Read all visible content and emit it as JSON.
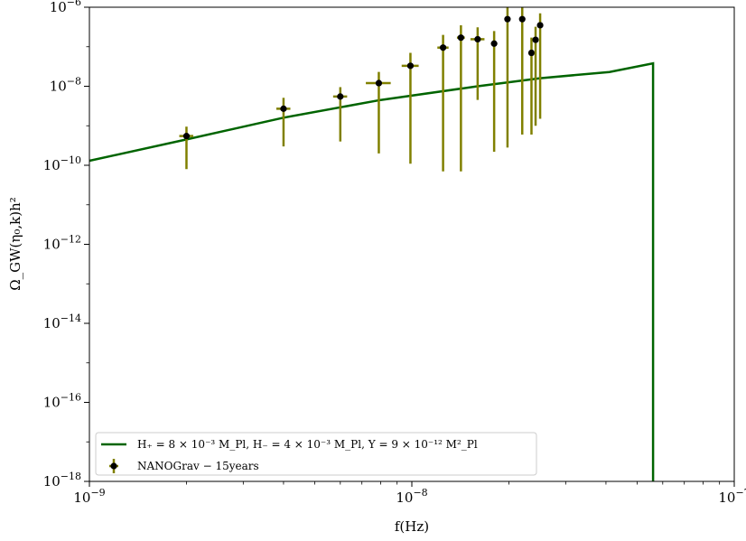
{
  "chart_data": {
    "type": "scatter",
    "title": "",
    "xlabel": "f(Hz)",
    "ylabel": "Ω_GW(η₀,k)h²",
    "x_scale": "log",
    "y_scale": "log",
    "xlim": [
      1e-09,
      1e-07
    ],
    "ylim": [
      1e-18,
      1e-06
    ],
    "grid": false,
    "legend_position": "lower-left",
    "x_ticks": [
      {
        "value": 1e-09,
        "base": "10",
        "exp": "−9"
      },
      {
        "value": 1e-08,
        "base": "10",
        "exp": "−8"
      },
      {
        "value": 1e-07,
        "base": "10",
        "exp": "−7"
      }
    ],
    "y_ticks": [
      {
        "value": 1e-06,
        "base": "10",
        "exp": "−6"
      },
      {
        "value": 1e-08,
        "base": "10",
        "exp": "−8"
      },
      {
        "value": 1e-10,
        "base": "10",
        "exp": "−10"
      },
      {
        "value": 1e-12,
        "base": "10",
        "exp": "−12"
      },
      {
        "value": 1e-14,
        "base": "10",
        "exp": "−14"
      },
      {
        "value": 1e-16,
        "base": "10",
        "exp": "−16"
      },
      {
        "value": 1e-18,
        "base": "10",
        "exp": "−18"
      }
    ],
    "series": [
      {
        "name": "H₊ = 8 × 10⁻³ M_Pl,   H₋ = 4 × 10⁻³ M_Pl,   Y = 9 × 10⁻¹² M²_Pl",
        "kind": "line",
        "color": "#006400",
        "x": [
          1e-09,
          2e-09,
          4e-09,
          8e-09,
          1.6e-08,
          2.5e-08,
          4.1e-08,
          5.6e-08,
          5.6e-08
        ],
        "y": [
          1.3e-10,
          4.5e-10,
          1.6e-09,
          4.5e-09,
          1e-08,
          1.6e-08,
          2.3e-08,
          3.8e-08,
          1e-18
        ]
      },
      {
        "name": "NANOGrav − 15years",
        "kind": "errorbar",
        "marker_color": "#000000",
        "errorbar_color": "#808000",
        "points": [
          {
            "x": 2e-09,
            "y": 5.5e-10,
            "ylo": 8e-11,
            "yhi": 9.5e-10,
            "xlo": 1.9e-09,
            "xhi": 2.1e-09
          },
          {
            "x": 4e-09,
            "y": 2.7e-09,
            "ylo": 3e-10,
            "yhi": 5.1e-09,
            "xlo": 3.8e-09,
            "xhi": 4.2e-09
          },
          {
            "x": 6e-09,
            "y": 5.5e-09,
            "ylo": 4e-10,
            "yhi": 9.5e-09,
            "xlo": 5.7e-09,
            "xhi": 6.3e-09
          },
          {
            "x": 7.9e-09,
            "y": 1.2e-08,
            "ylo": 2e-10,
            "yhi": 2.3e-08,
            "xlo": 7.2e-09,
            "xhi": 8.6e-09
          },
          {
            "x": 9.9e-09,
            "y": 3.3e-08,
            "ylo": 1.1e-10,
            "yhi": 7e-08,
            "xlo": 9.3e-09,
            "xhi": 1.05e-08
          },
          {
            "x": 1.25e-08,
            "y": 9.5e-08,
            "ylo": 7e-11,
            "yhi": 2e-07,
            "xlo": 1.2e-08,
            "xhi": 1.3e-08
          },
          {
            "x": 1.42e-08,
            "y": 1.7e-07,
            "ylo": 7e-11,
            "yhi": 3.5e-07,
            "xlo": 1.38e-08,
            "xhi": 1.46e-08
          },
          {
            "x": 1.6e-08,
            "y": 1.55e-07,
            "ylo": 4.5e-09,
            "yhi": 3.1e-07,
            "xlo": 1.52e-08,
            "xhi": 1.68e-08
          },
          {
            "x": 1.8e-08,
            "y": 1.2e-07,
            "ylo": 2.2e-10,
            "yhi": 2.5e-07,
            "xlo": 1.76e-08,
            "xhi": 1.84e-08
          },
          {
            "x": 1.98e-08,
            "y": 5e-07,
            "ylo": 2.8e-10,
            "yhi": 1e-06,
            "xlo": 1.94e-08,
            "xhi": 2.02e-08
          },
          {
            "x": 2.2e-08,
            "y": 5e-07,
            "ylo": 6e-10,
            "yhi": 1e-06,
            "xlo": 2.16e-08,
            "xhi": 2.24e-08
          },
          {
            "x": 2.35e-08,
            "y": 7e-08,
            "ylo": 6e-10,
            "yhi": 1.7e-07,
            "xlo": 2.31e-08,
            "xhi": 2.39e-08
          },
          {
            "x": 2.42e-08,
            "y": 1.5e-07,
            "ylo": 1e-09,
            "yhi": 3.2e-07,
            "xlo": 2.39e-08,
            "xhi": 2.45e-08
          },
          {
            "x": 2.5e-08,
            "y": 3.5e-07,
            "ylo": 1.5e-09,
            "yhi": 7e-07,
            "xlo": 2.47e-08,
            "xhi": 2.53e-08
          }
        ]
      }
    ]
  }
}
